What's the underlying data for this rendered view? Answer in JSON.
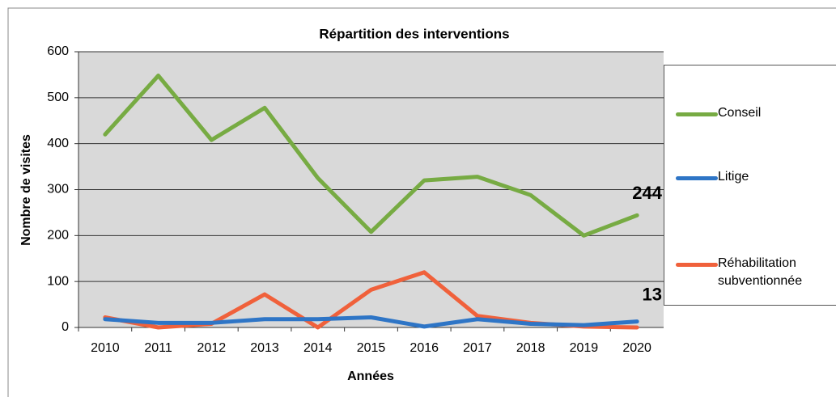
{
  "chart_data": {
    "type": "line",
    "title": "Répartition des interventions",
    "xlabel": "Années",
    "ylabel": "Nombre de visites",
    "categories": [
      "2010",
      "2011",
      "2012",
      "2013",
      "2014",
      "2015",
      "2016",
      "2017",
      "2018",
      "2019",
      "2020"
    ],
    "series": [
      {
        "name": "Conseil",
        "color": "#77ab43",
        "values": [
          420,
          548,
          408,
          478,
          325,
          208,
          320,
          328,
          288,
          200,
          244
        ]
      },
      {
        "name": "Litige",
        "color": "#2e75c6",
        "values": [
          18,
          10,
          10,
          18,
          18,
          22,
          2,
          18,
          8,
          5,
          13
        ]
      },
      {
        "name": "Réhabilitation subventionnée",
        "color": "#f0613b",
        "values": [
          22,
          0,
          8,
          72,
          0,
          82,
          120,
          25,
          10,
          2,
          0
        ]
      }
    ],
    "ylim": [
      0,
      600
    ],
    "yticks": [
      0,
      100,
      200,
      300,
      400,
      500,
      600
    ],
    "grid": true
  }
}
